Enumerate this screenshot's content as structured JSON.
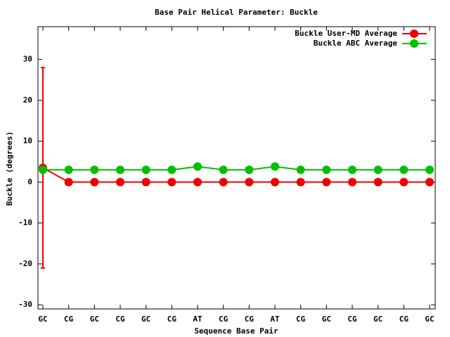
{
  "chart_data": {
    "type": "line",
    "title": "Base Pair Helical Parameter: Buckle",
    "x_label": "Sequence Base Pair",
    "y_label": "Buckle (degrees)",
    "categories": [
      "GC",
      "CG",
      "GC",
      "CG",
      "GC",
      "CG",
      "AT",
      "CG",
      "CG",
      "AT",
      "CG",
      "GC",
      "CG",
      "GC",
      "CG",
      "GC"
    ],
    "series": [
      {
        "name": "Buckle User-MD Average",
        "color": "#ee0000",
        "values": [
          3.5,
          0,
          0,
          0,
          0,
          0,
          0,
          0,
          0,
          0,
          0,
          0,
          0,
          0,
          0,
          0
        ],
        "errors": [
          24.5,
          0,
          0,
          0,
          0,
          0,
          0,
          0,
          0,
          0,
          0,
          0,
          0,
          0,
          0,
          0
        ]
      },
      {
        "name": "Buckle ABC Average",
        "color": "#00c000",
        "values": [
          3,
          3,
          3,
          3,
          3,
          3,
          3.8,
          3,
          3,
          3.8,
          3,
          3,
          3,
          3,
          3,
          3
        ]
      }
    ],
    "ylim": [
      -31,
      38
    ],
    "yticks": [
      -30,
      -20,
      -10,
      0,
      10,
      20,
      30
    ],
    "grid": false,
    "legend": "top-right"
  }
}
